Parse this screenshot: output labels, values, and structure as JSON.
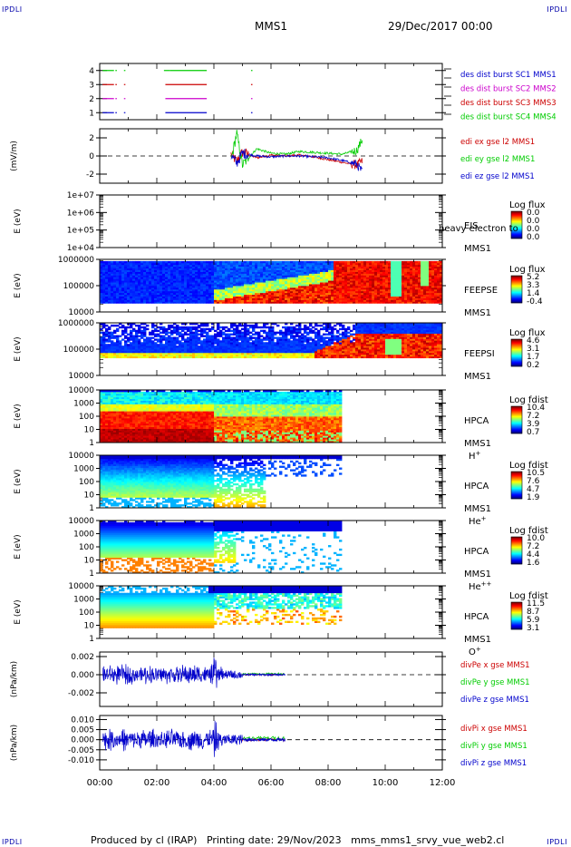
{
  "corner_label": "IPDLI",
  "header": {
    "spacecraft": "MMS1",
    "date": "29/Dec/2017 00:00"
  },
  "footer": "Produced by cl (IRAP)   Printing date: 29/Nov/2023   mms_mms1_srvy_vue_web2.cl",
  "colors": {
    "mms1": "#0000cc",
    "mms2": "#cc00cc",
    "mms3": "#cc0000",
    "mms4": "#00cc00",
    "axis": "#000000"
  },
  "chart_data": [
    {
      "id": "avail",
      "type": "line",
      "ylim": [
        0.5,
        4.5
      ],
      "yticks": [
        "1",
        "2",
        "3",
        "4"
      ],
      "legend": [
        {
          "name": "des dist burst SC1 MMS1",
          "color": "#0000cc"
        },
        {
          "name": "des dist burst SC2 MMS2",
          "color": "#cc00cc"
        },
        {
          "name": "des dist burst SC3 MMS3",
          "color": "#cc0000"
        },
        {
          "name": "des dist burst SC4 MMS4",
          "color": "#00cc00"
        }
      ],
      "series": [
        {
          "y": 4,
          "color": "#00cc00",
          "intervals": [
            [
              0.1,
              0.5
            ],
            [
              0.55,
              0.6
            ],
            [
              0.85,
              0.9
            ],
            [
              2.25,
              2.45
            ],
            [
              2.45,
              3.75
            ],
            [
              5.3,
              5.35
            ]
          ]
        },
        {
          "y": 3,
          "color": "#cc0000",
          "intervals": [
            [
              0.1,
              0.5
            ],
            [
              0.55,
              0.6
            ],
            [
              0.85,
              0.9
            ],
            [
              2.3,
              3.75
            ],
            [
              5.3,
              5.35
            ]
          ]
        },
        {
          "y": 2,
          "color": "#cc00cc",
          "intervals": [
            [
              0.1,
              0.5
            ],
            [
              0.55,
              0.6
            ],
            [
              0.85,
              0.9
            ],
            [
              2.3,
              3.75
            ],
            [
              5.3,
              5.35
            ]
          ]
        },
        {
          "y": 1,
          "color": "#0000cc",
          "intervals": [
            [
              0.1,
              0.5
            ],
            [
              0.55,
              0.6
            ],
            [
              0.85,
              0.9
            ],
            [
              2.3,
              3.75
            ],
            [
              5.3,
              5.35
            ]
          ]
        }
      ]
    },
    {
      "id": "edi",
      "type": "line",
      "ylabel": "(mV/m)",
      "ylim": [
        -3,
        3
      ],
      "yticks": [
        "-2",
        "0",
        "2"
      ],
      "zero_line": true,
      "legend": [
        {
          "name": "edi ex gse l2 MMS1",
          "color": "#cc0000"
        },
        {
          "name": "edi ey gse l2 MMS1",
          "color": "#00cc00"
        },
        {
          "name": "edi ez gse l2 MMS1",
          "color": "#0000cc"
        }
      ],
      "series": [
        {
          "name": "edi ex gse l2 MMS1",
          "color": "#cc0000",
          "x": [
            4.6,
            4.8,
            5.0,
            5.5,
            6.0,
            6.5,
            7.0,
            7.5,
            8.0,
            8.5,
            9.0,
            9.2
          ],
          "y": [
            0.2,
            -0.6,
            0.4,
            -0.2,
            0.1,
            0.0,
            0.1,
            -0.1,
            -0.4,
            -0.7,
            -1.0,
            -0.6
          ]
        },
        {
          "name": "edi ey gse l2 MMS1",
          "color": "#00cc00",
          "x": [
            4.6,
            4.8,
            5.0,
            5.5,
            6.0,
            6.5,
            7.0,
            7.5,
            8.0,
            8.5,
            9.0,
            9.2
          ],
          "y": [
            -0.5,
            2.5,
            -1.0,
            0.8,
            0.3,
            0.2,
            0.5,
            0.4,
            0.3,
            0.2,
            0.6,
            1.8
          ]
        },
        {
          "name": "edi ez gse l2 MMS1",
          "color": "#0000cc",
          "x": [
            4.6,
            4.8,
            5.0,
            5.5,
            6.0,
            6.5,
            7.0,
            7.5,
            8.0,
            8.5,
            9.0,
            9.2
          ],
          "y": [
            0.0,
            -0.8,
            0.3,
            0.0,
            -0.1,
            0.0,
            0.0,
            -0.1,
            -0.2,
            -0.5,
            -0.9,
            -1.8
          ]
        }
      ]
    },
    {
      "id": "eis",
      "type": "heatmap",
      "ylabel": "E (eV)",
      "ylim": [
        10000,
        10000000
      ],
      "yticks": [
        "1e+04",
        "1e+05",
        "1e+06",
        "1e+07"
      ],
      "label_lines": [
        "EIS",
        "MMS1"
      ],
      "overlay_text": "heavy electron to",
      "colorbar": {
        "title": "Log flux",
        "ticks": [
          "0.0",
          "0.0",
          "0.0",
          "0.0"
        ]
      },
      "data_extent": [
        0,
        0
      ]
    },
    {
      "id": "feeps_e",
      "type": "heatmap",
      "ylabel": "E (eV)",
      "ylim": [
        10000,
        1000000
      ],
      "yticks": [
        "10000",
        "100000",
        "1000000"
      ],
      "label_lines": [
        "FEEPSE",
        "MMS1"
      ],
      "colorbar": {
        "title": "Log flux",
        "ticks": [
          "5.2",
          "3.3",
          "1.4",
          "-0.4"
        ]
      },
      "data_extent": [
        0,
        12
      ]
    },
    {
      "id": "feeps_i",
      "type": "heatmap",
      "ylabel": "E (eV)",
      "ylim": [
        10000,
        1000000
      ],
      "yticks": [
        "10000",
        "100000",
        "1000000"
      ],
      "label_lines": [
        "FEEPSI",
        "MMS1"
      ],
      "colorbar": {
        "title": "Log flux",
        "ticks": [
          "4.6",
          "3.1",
          "1.7",
          "0.2"
        ]
      },
      "data_extent": [
        0,
        12
      ]
    },
    {
      "id": "hpca_h",
      "type": "heatmap",
      "ylabel": "E (eV)",
      "ylim": [
        1,
        10000
      ],
      "yticks": [
        "1",
        "10",
        "100",
        "1000",
        "10000"
      ],
      "label_lines": [
        "HPCA",
        "MMS1",
        "H+"
      ],
      "colorbar": {
        "title": "Log fdist",
        "ticks": [
          "10.4",
          "7.2",
          "3.9",
          "0.7"
        ]
      },
      "data_extent": [
        0,
        8.5
      ]
    },
    {
      "id": "hpca_he",
      "type": "heatmap",
      "ylabel": "E (eV)",
      "ylim": [
        1,
        10000
      ],
      "yticks": [
        "1",
        "10",
        "100",
        "1000",
        "10000"
      ],
      "label_lines": [
        "HPCA",
        "MMS1",
        "He+"
      ],
      "colorbar": {
        "title": "Log fdist",
        "ticks": [
          "10.5",
          "7.6",
          "4.7",
          "1.9"
        ]
      },
      "data_extent": [
        0,
        8.5
      ]
    },
    {
      "id": "hpca_hepp",
      "type": "heatmap",
      "ylabel": "E (eV)",
      "ylim": [
        1,
        10000
      ],
      "yticks": [
        "1",
        "10",
        "100",
        "1000",
        "10000"
      ],
      "label_lines": [
        "HPCA",
        "MMS1",
        "He++"
      ],
      "colorbar": {
        "title": "Log fdist",
        "ticks": [
          "10.0",
          "7.2",
          "4.4",
          "1.6"
        ]
      },
      "data_extent": [
        0,
        8.5
      ]
    },
    {
      "id": "hpca_o",
      "type": "heatmap",
      "ylabel": "E (eV)",
      "ylim": [
        1,
        10000
      ],
      "yticks": [
        "1",
        "10",
        "100",
        "1000",
        "10000"
      ],
      "label_lines": [
        "HPCA",
        "MMS1",
        "O+"
      ],
      "colorbar": {
        "title": "Log fdist",
        "ticks": [
          "11.5",
          "8.7",
          "5.9",
          "3.1"
        ]
      },
      "data_extent": [
        0,
        8.5
      ]
    },
    {
      "id": "divpe",
      "type": "line",
      "ylabel": "(nPa/km)",
      "ylim": [
        -0.0035,
        0.0025
      ],
      "yticks": [
        "-0.002",
        "0.000",
        "0.002"
      ],
      "zero_line": true,
      "legend": [
        {
          "name": "divPe x gse MMS1",
          "color": "#cc0000"
        },
        {
          "name": "divPe y gse MMS1",
          "color": "#00cc00"
        },
        {
          "name": "divPe z gse MMS1",
          "color": "#0000cc"
        }
      ],
      "series": [
        {
          "name": "divPe z gse MMS1",
          "color": "#0000cc",
          "x": [
            0.1,
            6.5
          ],
          "y": [
            0,
            0
          ],
          "amplitude": 0.0012,
          "amplitude_end": 0.0001
        }
      ]
    },
    {
      "id": "divpi",
      "type": "line",
      "ylabel": "(nPa/km)",
      "ylim": [
        -0.015,
        0.012
      ],
      "yticks": [
        "-0.010",
        "-0.005",
        "0.000",
        "0.005",
        "0.010"
      ],
      "zero_line": true,
      "legend": [
        {
          "name": "divPi x gse MMS1",
          "color": "#cc0000"
        },
        {
          "name": "divPi y gse MMS1",
          "color": "#00cc00"
        },
        {
          "name": "divPi z gse MMS1",
          "color": "#0000cc"
        }
      ],
      "series": [
        {
          "name": "divPi z gse MMS1",
          "color": "#0000cc",
          "x": [
            0.1,
            6.5
          ],
          "y": [
            0,
            0
          ],
          "amplitude": 0.006,
          "amplitude_end": 0.0008
        }
      ]
    }
  ],
  "xaxis": {
    "range": [
      0,
      12
    ],
    "ticks": [
      "00:00",
      "02:00",
      "04:00",
      "06:00",
      "08:00",
      "10:00",
      "12:00"
    ]
  }
}
